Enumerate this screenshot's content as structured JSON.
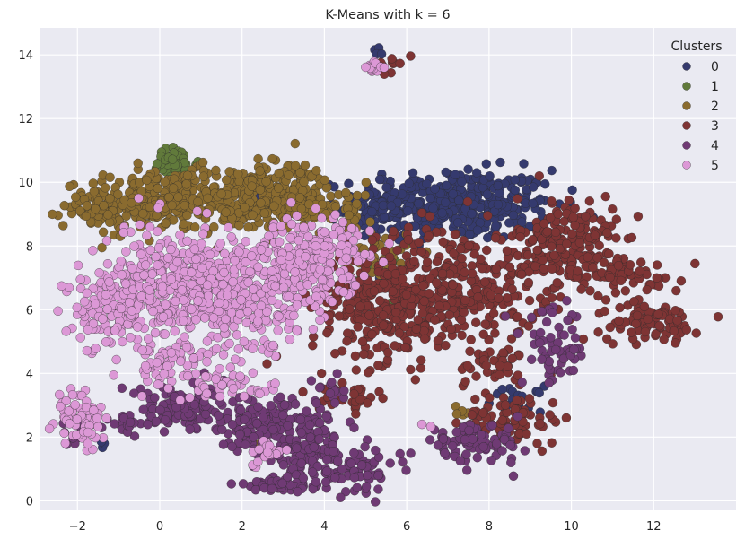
{
  "chart_data": {
    "type": "scatter",
    "title": "K-Means with k = 6",
    "xlabel": "",
    "ylabel": "",
    "xlim": [
      -2.9,
      14.0
    ],
    "ylim": [
      -0.3,
      14.85
    ],
    "xticks": [
      -2,
      0,
      2,
      4,
      6,
      8,
      10,
      12
    ],
    "yticks": [
      0,
      2,
      4,
      6,
      8,
      10,
      12,
      14
    ],
    "grid": true,
    "legend": {
      "title": "Clusters",
      "placement": "top-right"
    },
    "series": [
      {
        "name": "0",
        "color": "#353a6e",
        "blobs": [
          {
            "cx": 7.2,
            "cy": 9.3,
            "sx": 1.2,
            "sy": 0.55,
            "n": 380
          },
          {
            "cx": 5.4,
            "cy": 9.2,
            "sx": 0.45,
            "sy": 0.35,
            "n": 60
          },
          {
            "cx": 8.7,
            "cy": 3.2,
            "sx": 0.3,
            "sy": 0.2,
            "n": 18
          },
          {
            "cx": -1.4,
            "cy": 1.75,
            "sx": 0.05,
            "sy": 0.05,
            "n": 3
          },
          {
            "cx": 5.35,
            "cy": 14.1,
            "sx": 0.08,
            "sy": 0.08,
            "n": 4
          }
        ]
      },
      {
        "name": "1",
        "color": "#617a3b",
        "blobs": [
          {
            "cx": 0.35,
            "cy": 10.6,
            "sx": 0.3,
            "sy": 0.25,
            "n": 45
          },
          {
            "cx": 5.6,
            "cy": 7.3,
            "sx": 0.4,
            "sy": 0.4,
            "n": 10
          }
        ]
      },
      {
        "name": "2",
        "color": "#8a6b2f",
        "blobs": [
          {
            "cx": -1.1,
            "cy": 9.3,
            "sx": 0.6,
            "sy": 0.35,
            "n": 120
          },
          {
            "cx": 0.3,
            "cy": 9.4,
            "sx": 0.8,
            "sy": 0.5,
            "n": 170
          },
          {
            "cx": 1.8,
            "cy": 9.5,
            "sx": 0.9,
            "sy": 0.5,
            "n": 200
          },
          {
            "cx": 3.1,
            "cy": 9.7,
            "sx": 0.6,
            "sy": 0.5,
            "n": 140
          },
          {
            "cx": 4.3,
            "cy": 9.2,
            "sx": 0.5,
            "sy": 0.4,
            "n": 60
          },
          {
            "cx": 5.2,
            "cy": 7.6,
            "sx": 0.4,
            "sy": 0.5,
            "n": 40
          },
          {
            "cx": 7.4,
            "cy": 2.8,
            "sx": 0.1,
            "sy": 0.1,
            "n": 5
          },
          {
            "cx": 2.4,
            "cy": 1.8,
            "sx": 0.06,
            "sy": 0.06,
            "n": 3
          }
        ]
      },
      {
        "name": "3",
        "color": "#7e3434",
        "blobs": [
          {
            "cx": 5.5,
            "cy": 6.2,
            "sx": 0.9,
            "sy": 0.9,
            "n": 320
          },
          {
            "cx": 7.4,
            "cy": 6.8,
            "sx": 0.9,
            "sy": 0.9,
            "n": 240
          },
          {
            "cx": 9.9,
            "cy": 8.0,
            "sx": 0.6,
            "sy": 0.8,
            "n": 200
          },
          {
            "cx": 11.3,
            "cy": 7.1,
            "sx": 0.7,
            "sy": 0.3,
            "n": 60
          },
          {
            "cx": 11.9,
            "cy": 5.6,
            "sx": 0.6,
            "sy": 0.3,
            "n": 80
          },
          {
            "cx": 8.6,
            "cy": 2.6,
            "sx": 0.6,
            "sy": 0.4,
            "n": 80
          },
          {
            "cx": 8.2,
            "cy": 4.2,
            "sx": 0.5,
            "sy": 0.3,
            "n": 40
          },
          {
            "cx": 4.6,
            "cy": 3.3,
            "sx": 0.35,
            "sy": 0.25,
            "n": 30
          },
          {
            "cx": 5.55,
            "cy": 13.7,
            "sx": 0.15,
            "sy": 0.12,
            "n": 12
          }
        ]
      },
      {
        "name": "4",
        "color": "#6f3a74",
        "blobs": [
          {
            "cx": 0.6,
            "cy": 2.9,
            "sx": 0.7,
            "sy": 0.4,
            "n": 120
          },
          {
            "cx": -0.8,
            "cy": 2.4,
            "sx": 0.5,
            "sy": 0.15,
            "n": 30
          },
          {
            "cx": 2.5,
            "cy": 2.4,
            "sx": 0.7,
            "sy": 0.4,
            "n": 130
          },
          {
            "cx": 3.6,
            "cy": 1.6,
            "sx": 0.6,
            "sy": 0.6,
            "n": 120
          },
          {
            "cx": 3.0,
            "cy": 0.5,
            "sx": 0.6,
            "sy": 0.1,
            "n": 50
          },
          {
            "cx": 4.8,
            "cy": 0.9,
            "sx": 0.5,
            "sy": 0.3,
            "n": 60
          },
          {
            "cx": 7.6,
            "cy": 1.8,
            "sx": 0.6,
            "sy": 0.3,
            "n": 90
          },
          {
            "cx": 9.6,
            "cy": 4.8,
            "sx": 0.4,
            "sy": 0.6,
            "n": 60
          },
          {
            "cx": 4.2,
            "cy": 3.4,
            "sx": 0.3,
            "sy": 0.2,
            "n": 15
          },
          {
            "cx": -2.1,
            "cy": 1.85,
            "sx": 0.08,
            "sy": 0.08,
            "n": 5
          }
        ]
      },
      {
        "name": "5",
        "color": "#dc98d6",
        "blobs": [
          {
            "cx": -1.2,
            "cy": 6.0,
            "sx": 0.4,
            "sy": 0.6,
            "n": 120
          },
          {
            "cx": 0.2,
            "cy": 6.8,
            "sx": 0.8,
            "sy": 0.9,
            "n": 260
          },
          {
            "cx": 1.7,
            "cy": 6.4,
            "sx": 0.8,
            "sy": 0.9,
            "n": 260
          },
          {
            "cx": 3.3,
            "cy": 7.2,
            "sx": 0.7,
            "sy": 0.8,
            "n": 200
          },
          {
            "cx": 4.1,
            "cy": 7.8,
            "sx": 0.5,
            "sy": 0.5,
            "n": 80
          },
          {
            "cx": 0.2,
            "cy": 4.3,
            "sx": 0.5,
            "sy": 0.4,
            "n": 60
          },
          {
            "cx": 1.8,
            "cy": 3.6,
            "sx": 0.6,
            "sy": 0.2,
            "n": 40
          },
          {
            "cx": -1.9,
            "cy": 2.6,
            "sx": 0.3,
            "sy": 0.5,
            "n": 70
          },
          {
            "cx": 2.6,
            "cy": 1.5,
            "sx": 0.2,
            "sy": 0.2,
            "n": 20
          },
          {
            "cx": 5.25,
            "cy": 13.6,
            "sx": 0.12,
            "sy": 0.1,
            "n": 14
          },
          {
            "cx": 6.5,
            "cy": 2.3,
            "sx": 0.1,
            "sy": 0.1,
            "n": 2
          }
        ]
      }
    ]
  }
}
